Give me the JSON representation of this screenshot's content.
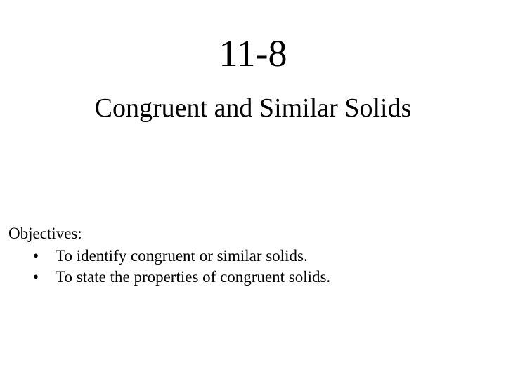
{
  "title": {
    "section_number": "11-8",
    "section_title": "Congruent and Similar Solids"
  },
  "objectives": {
    "heading": "Objectives:",
    "items": [
      "To identify congruent or similar solids.",
      "To state the properties of congruent solids."
    ]
  },
  "styling": {
    "background_color": "#ffffff",
    "text_color": "#000000",
    "font_family": "Times New Roman",
    "section_number_fontsize": 54,
    "section_title_fontsize": 38,
    "objectives_fontsize": 23
  }
}
